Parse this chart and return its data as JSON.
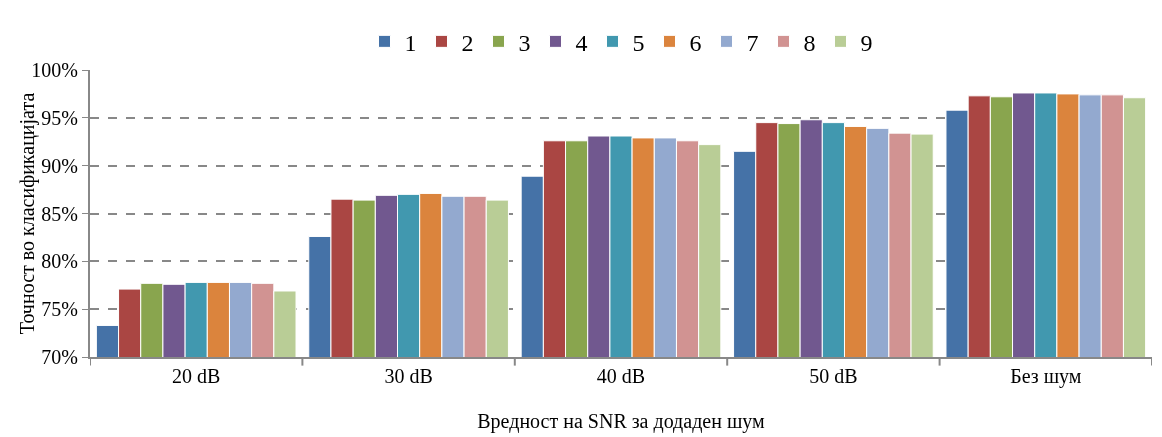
{
  "chart_data": {
    "type": "bar",
    "xlabel": "Вредност на SNR за додаден шум",
    "ylabel": "Точност во класификацијата",
    "categories": [
      "20 dB",
      "30 dB",
      "40 dB",
      "50 dB",
      "Без шум"
    ],
    "series": [
      {
        "name": "1",
        "color": "#4572a7",
        "values": [
          73.3,
          82.6,
          88.9,
          91.5,
          95.8
        ]
      },
      {
        "name": "2",
        "color": "#aa4643",
        "values": [
          77.1,
          86.5,
          92.6,
          94.5,
          97.3
        ]
      },
      {
        "name": "3",
        "color": "#89a54e",
        "values": [
          77.7,
          86.4,
          92.6,
          94.4,
          97.2
        ]
      },
      {
        "name": "4",
        "color": "#71588f",
        "values": [
          77.6,
          86.9,
          93.1,
          94.8,
          97.6
        ]
      },
      {
        "name": "5",
        "color": "#4198af",
        "values": [
          77.8,
          87.0,
          93.1,
          94.5,
          97.6
        ]
      },
      {
        "name": "6",
        "color": "#db843d",
        "values": [
          77.8,
          87.1,
          92.9,
          94.1,
          97.5
        ]
      },
      {
        "name": "7",
        "color": "#93a9cf",
        "values": [
          77.8,
          86.8,
          92.9,
          93.9,
          97.4
        ]
      },
      {
        "name": "8",
        "color": "#d19392",
        "values": [
          77.7,
          86.8,
          92.6,
          93.4,
          97.4
        ]
      },
      {
        "name": "9",
        "color": "#b9cd96",
        "values": [
          76.9,
          86.4,
          92.2,
          93.3,
          97.1
        ]
      }
    ],
    "ylim": [
      70,
      100
    ],
    "yticks": [
      {
        "value": 70,
        "label": "70%"
      },
      {
        "value": 75,
        "label": "75%"
      },
      {
        "value": 80,
        "label": "80%"
      },
      {
        "value": 85,
        "label": "85%"
      },
      {
        "value": 90,
        "label": "90%"
      },
      {
        "value": 95,
        "label": "95%"
      },
      {
        "value": 100,
        "label": "100%"
      }
    ],
    "grid": "y",
    "legend": "top"
  }
}
